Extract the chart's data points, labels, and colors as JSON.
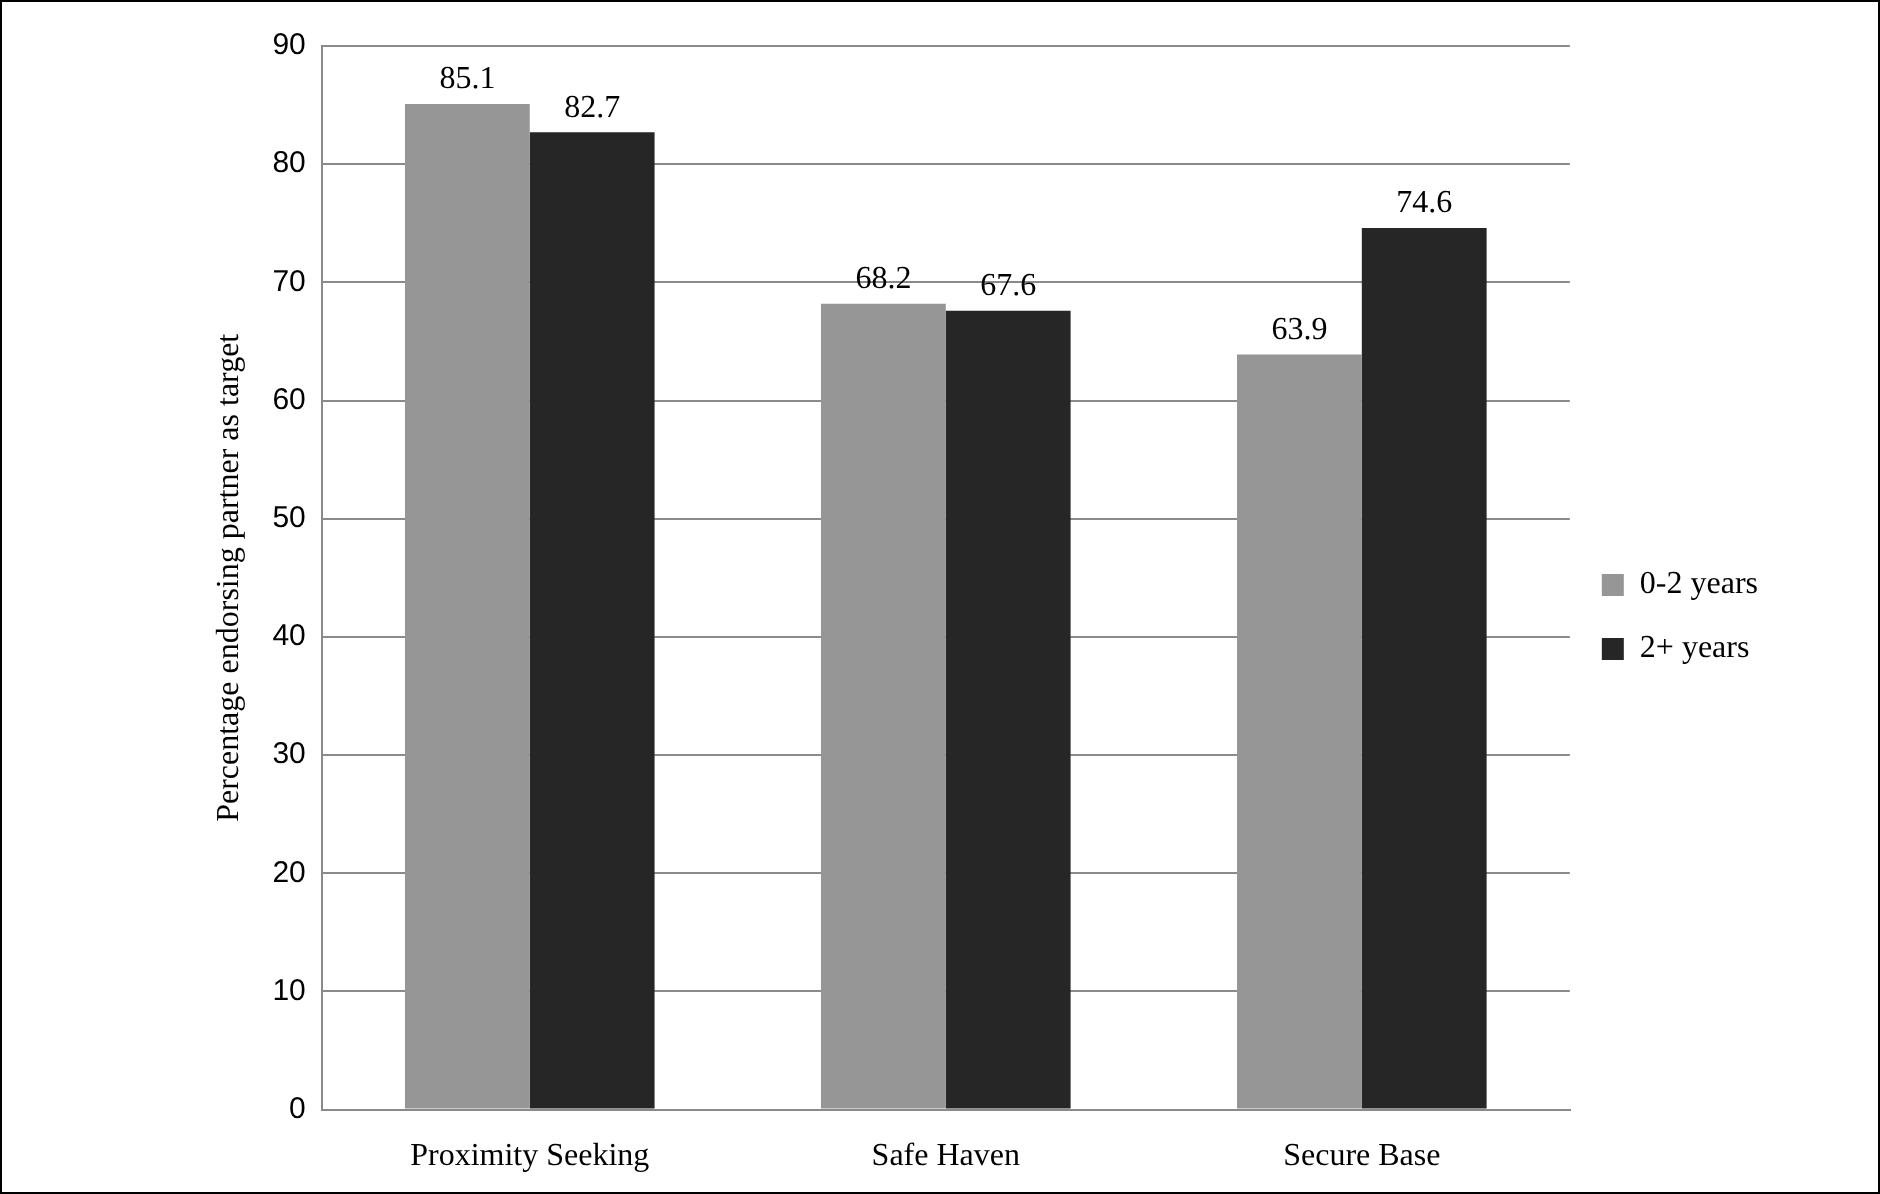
{
  "chart_data": {
    "type": "bar",
    "ylabel": "Percentage endorsing partner as target",
    "categories": [
      "Proximity Seeking",
      "Safe Haven",
      "Secure Base"
    ],
    "series": [
      {
        "name": "0-2 years",
        "color": "#969696",
        "values": [
          85.1,
          68.2,
          63.9
        ]
      },
      {
        "name": "2+ years",
        "color": "#262626",
        "values": [
          82.7,
          67.6,
          74.6
        ]
      }
    ],
    "ylim": [
      0,
      90
    ],
    "yticks": [
      0,
      10,
      20,
      30,
      40,
      50,
      60,
      70,
      80,
      90
    ],
    "grid": "y",
    "legend": "right",
    "data_labels": true
  }
}
